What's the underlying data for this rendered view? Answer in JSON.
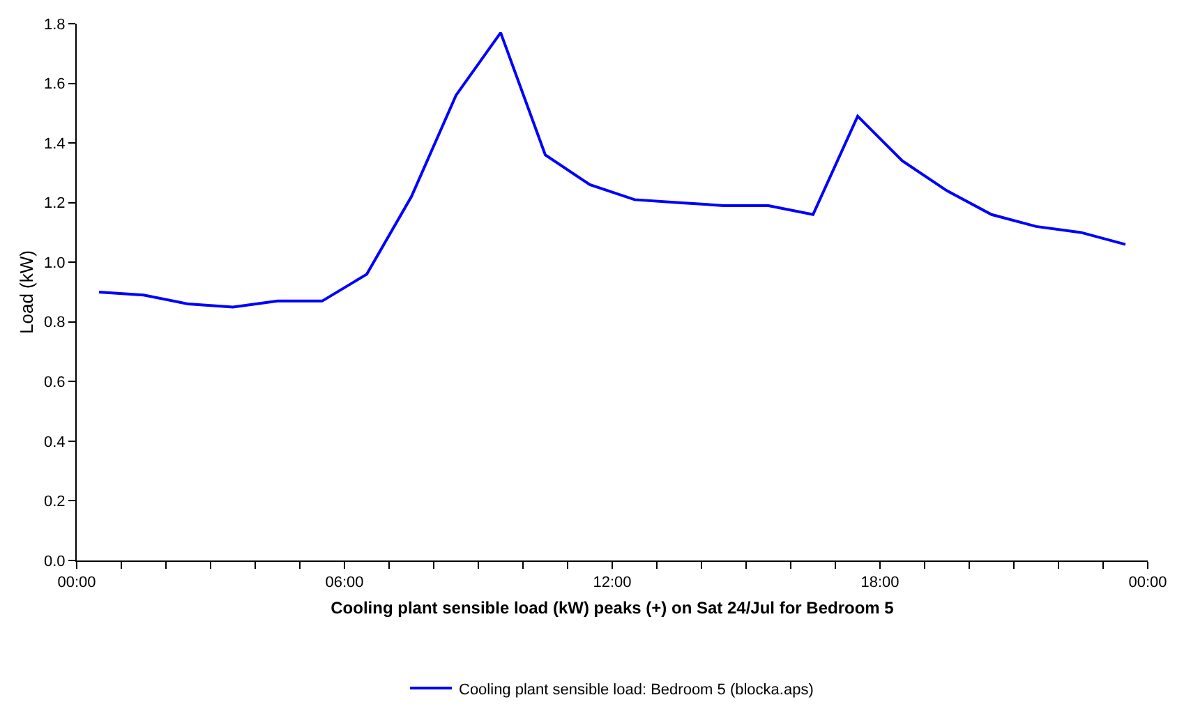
{
  "chart_data": {
    "type": "line",
    "xlabel": "Cooling plant sensible load (kW) peaks (+) on Sat 24/Jul for Bedroom 5",
    "ylabel": "Load (kW)",
    "x": [
      0.5,
      1.5,
      2.5,
      3.5,
      4.5,
      5.5,
      6.5,
      7.5,
      8.5,
      9.5,
      10.5,
      11.5,
      12.5,
      13.5,
      14.5,
      15.5,
      16.5,
      17.5,
      18.5,
      19.5,
      20.5,
      21.5,
      22.5,
      23.5
    ],
    "series": [
      {
        "name": "Cooling plant sensible load: Bedroom 5 (blocka.aps)",
        "color": "#0000ff",
        "values": [
          0.9,
          0.89,
          0.86,
          0.85,
          0.87,
          0.87,
          0.96,
          1.22,
          1.56,
          1.77,
          1.36,
          1.26,
          1.21,
          1.2,
          1.19,
          1.19,
          1.16,
          1.49,
          1.34,
          1.24,
          1.16,
          1.12,
          1.1,
          1.06
        ]
      }
    ],
    "xlim": [
      0,
      24
    ],
    "xticks": [
      {
        "value": 0,
        "label": "00:00"
      },
      {
        "value": 1,
        "label": null
      },
      {
        "value": 2,
        "label": null
      },
      {
        "value": 3,
        "label": null
      },
      {
        "value": 4,
        "label": null
      },
      {
        "value": 5,
        "label": null
      },
      {
        "value": 6,
        "label": "06:00"
      },
      {
        "value": 7,
        "label": null
      },
      {
        "value": 8,
        "label": null
      },
      {
        "value": 9,
        "label": null
      },
      {
        "value": 10,
        "label": null
      },
      {
        "value": 11,
        "label": null
      },
      {
        "value": 12,
        "label": "12:00"
      },
      {
        "value": 13,
        "label": null
      },
      {
        "value": 14,
        "label": null
      },
      {
        "value": 15,
        "label": null
      },
      {
        "value": 16,
        "label": null
      },
      {
        "value": 17,
        "label": null
      },
      {
        "value": 18,
        "label": "18:00"
      },
      {
        "value": 19,
        "label": null
      },
      {
        "value": 20,
        "label": null
      },
      {
        "value": 21,
        "label": null
      },
      {
        "value": 22,
        "label": null
      },
      {
        "value": 23,
        "label": null
      },
      {
        "value": 24,
        "label": "00:00"
      }
    ],
    "ylim": [
      0,
      1.8
    ],
    "yticks": [
      {
        "value": 0,
        "label": "0.0"
      },
      {
        "value": 0.2,
        "label": "0.2"
      },
      {
        "value": 0.4,
        "label": "0.4"
      },
      {
        "value": 0.6,
        "label": "0.6"
      },
      {
        "value": 0.8,
        "label": "0.8"
      },
      {
        "value": 1.0,
        "label": "1.0"
      },
      {
        "value": 1.2,
        "label": "1.2"
      },
      {
        "value": 1.4,
        "label": "1.4"
      },
      {
        "value": 1.6,
        "label": "1.6"
      },
      {
        "value": 1.8,
        "label": "1.8"
      }
    ],
    "legend": "bottom",
    "marker": "none",
    "line_style": "solid"
  }
}
